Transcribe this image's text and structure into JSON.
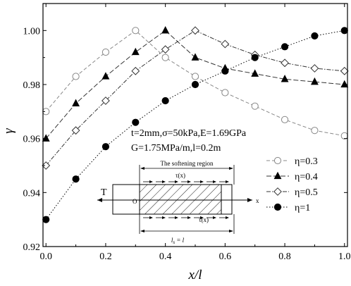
{
  "chart_data": {
    "type": "line",
    "xlabel": "x/l",
    "ylabel": "γ",
    "xlim": [
      -0.01,
      1.01
    ],
    "ylim": [
      0.92,
      1.01
    ],
    "x_ticks": [
      0.0,
      0.2,
      0.4,
      0.6,
      0.8,
      1.0
    ],
    "x_tick_labels": [
      "0.0",
      "0.2",
      "0.4",
      "0.6",
      "0.8",
      "1.0"
    ],
    "y_ticks": [
      0.92,
      0.94,
      0.96,
      0.98,
      1.0
    ],
    "y_tick_labels": [
      "0.92",
      "0.94",
      "0.96",
      "0.98",
      "1.00"
    ],
    "grid": false,
    "legend_position": "right-middle",
    "annotation_lines": [
      "t=2mm,σ=50kPa,E=1.69GPa",
      "G=1.75MPa/m,l=0.2m"
    ],
    "inset": {
      "title": "The softening region",
      "force_label": "T",
      "origin_label": "O",
      "axis_label": "x",
      "shear_top": "τ(x)",
      "shear_bottom": "τ(x)",
      "length_label": "l",
      "length_subscript": "s",
      "length_rhs": " = l"
    },
    "x": [
      0.0,
      0.1,
      0.2,
      0.3,
      0.4,
      0.5,
      0.6,
      0.7,
      0.8,
      0.9,
      1.0
    ],
    "series": [
      {
        "name": "η=0.3",
        "marker": "circle-open",
        "dash": "5,3",
        "color": "#888888",
        "values": [
          0.97,
          0.983,
          0.992,
          1.0,
          0.99,
          0.983,
          0.977,
          0.972,
          0.967,
          0.963,
          0.961
        ]
      },
      {
        "name": "η=0.4",
        "marker": "triangle-filled",
        "dash": "7,3",
        "color": "#333333",
        "values": [
          0.96,
          0.973,
          0.983,
          0.992,
          1.0,
          0.99,
          0.986,
          0.984,
          0.982,
          0.981,
          0.98
        ]
      },
      {
        "name": "η=0.5",
        "marker": "diamond-open",
        "dash": "6,2,1.5,2",
        "color": "#333333",
        "values": [
          0.95,
          0.963,
          0.974,
          0.985,
          0.993,
          1.0,
          0.995,
          0.991,
          0.988,
          0.986,
          0.985
        ]
      },
      {
        "name": "η=1",
        "marker": "circle-filled",
        "dash": "1.5,2.5",
        "color": "#000000",
        "values": [
          0.93,
          0.945,
          0.957,
          0.966,
          0.974,
          0.98,
          0.985,
          0.99,
          0.994,
          0.998,
          1.0
        ]
      }
    ]
  }
}
